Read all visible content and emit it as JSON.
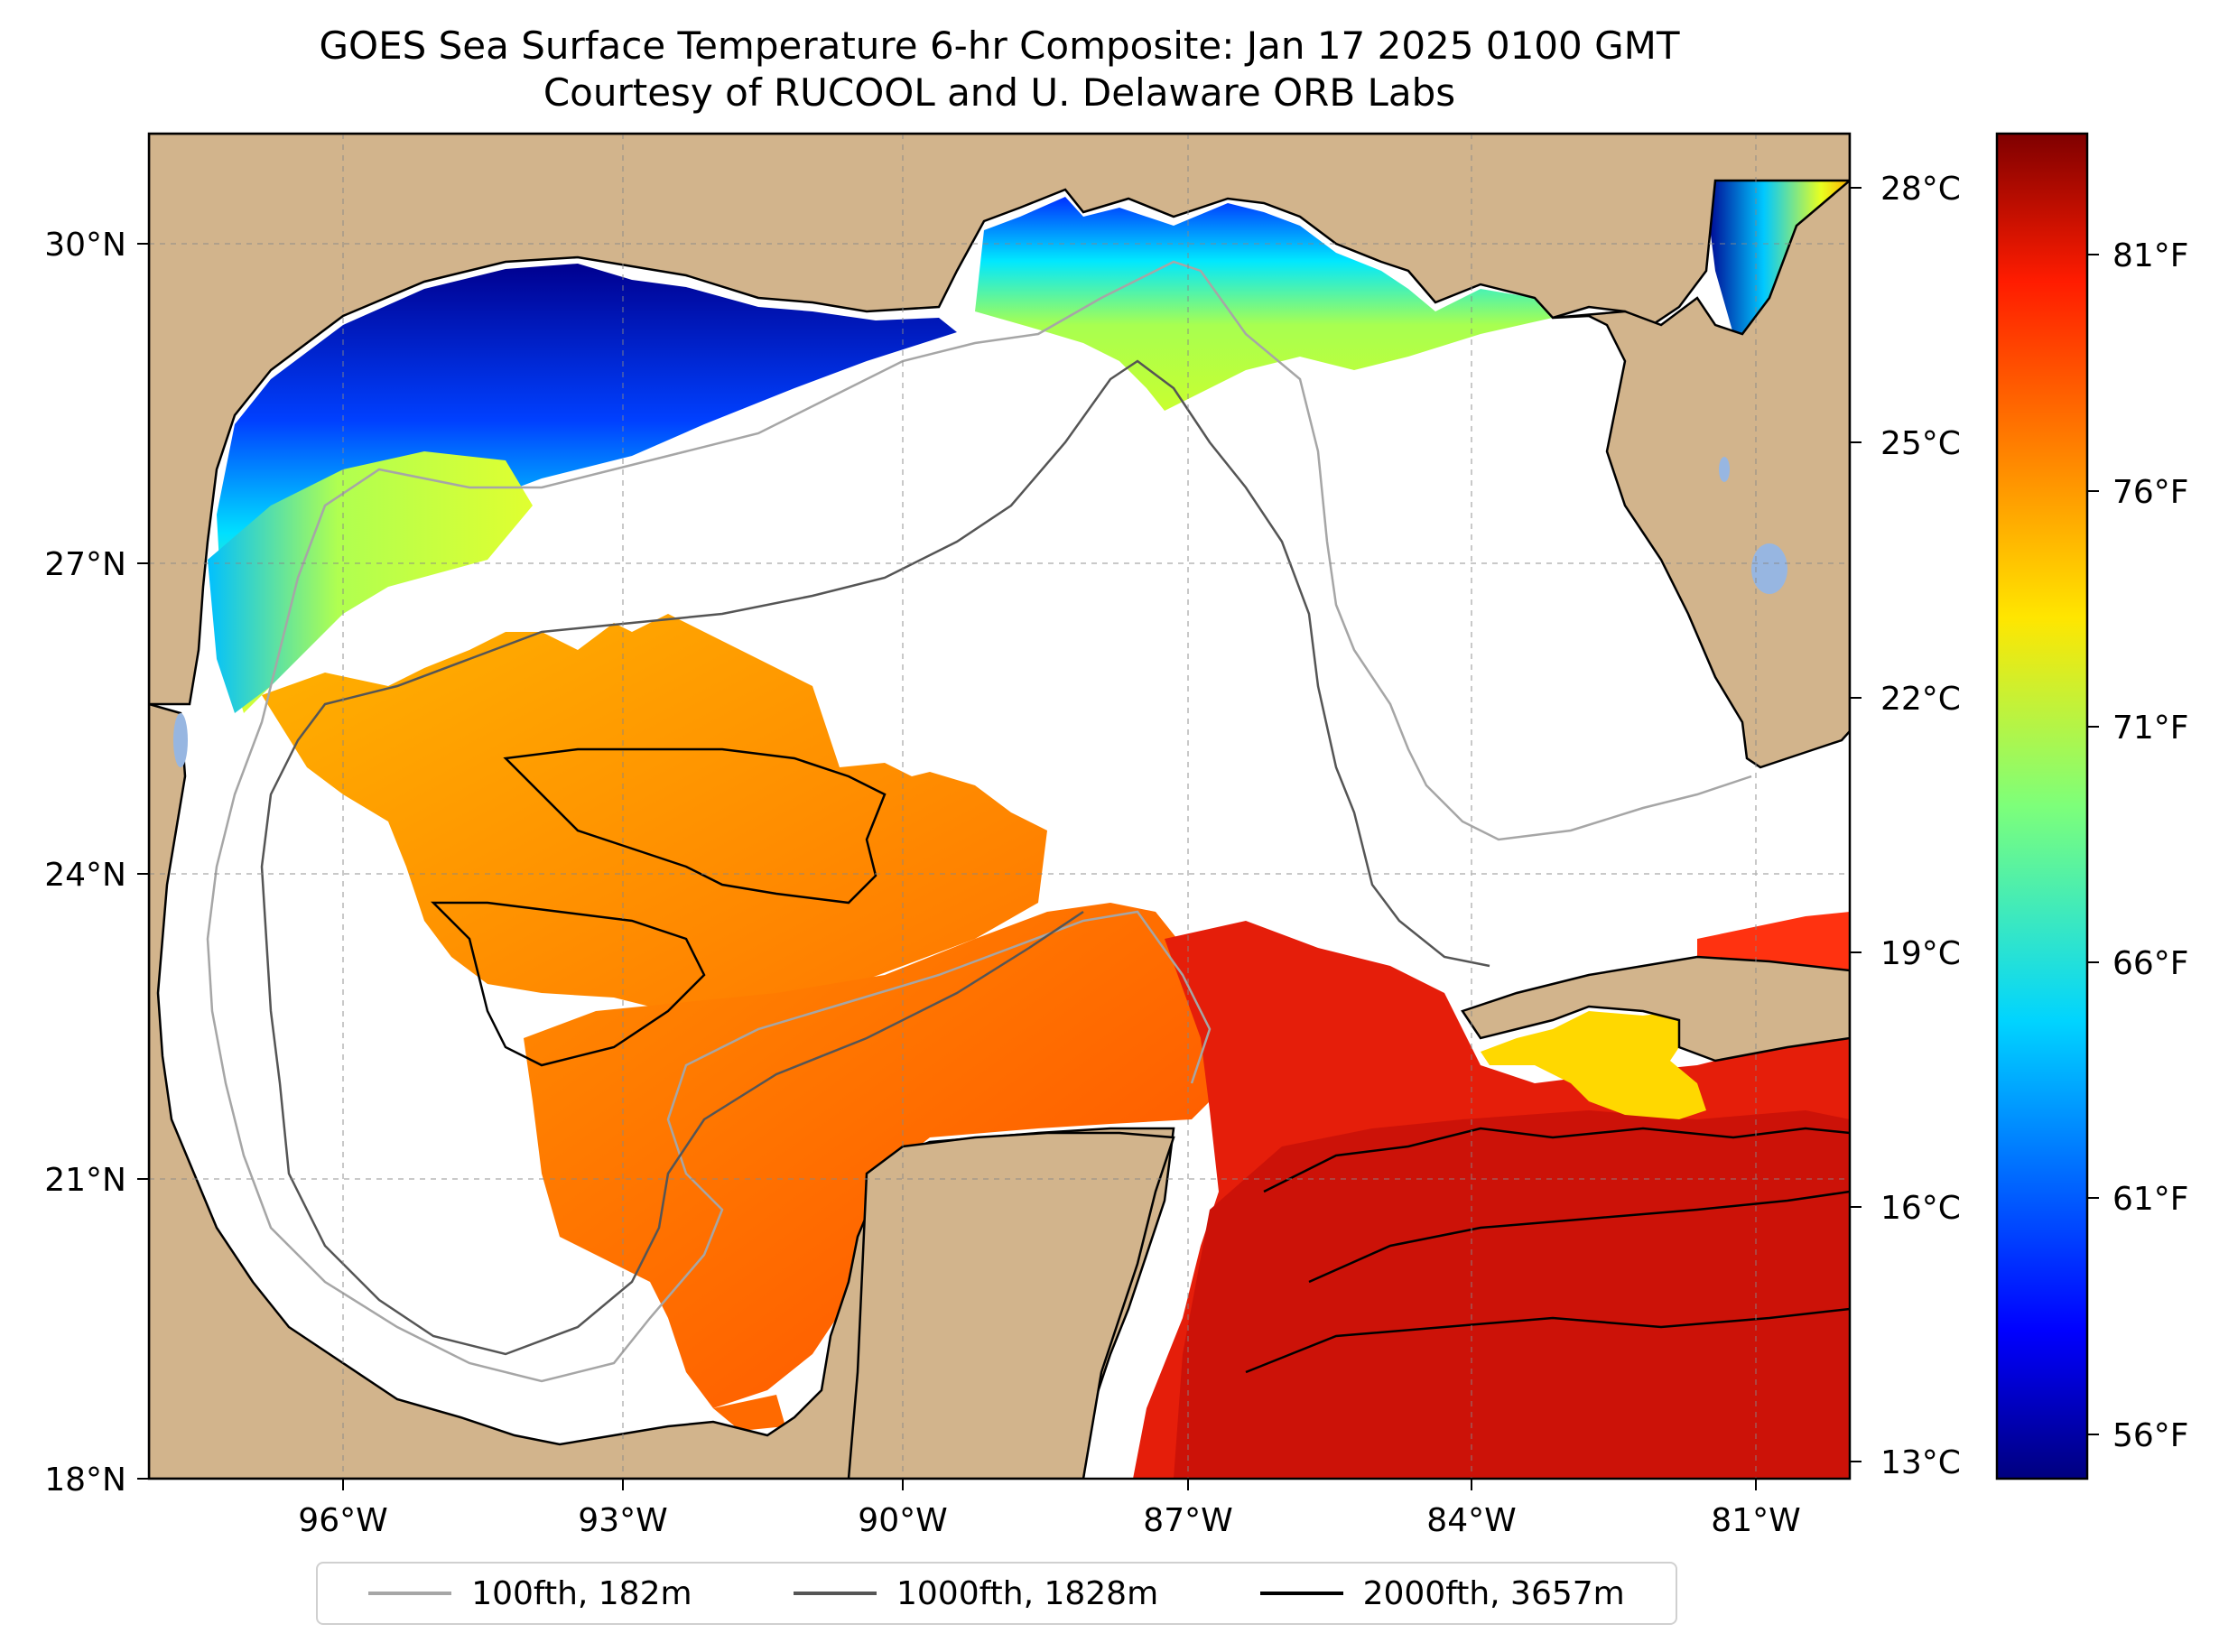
{
  "title": {
    "line1": "GOES Sea Surface Temperature 6-hr Composite: Jan 17 2025 0100 GMT",
    "line2": "Courtesy of RUCOOL and U. Delaware ORB Labs"
  },
  "map": {
    "region": "Gulf of Mexico",
    "lon_range": [
      -98,
      -80
    ],
    "lat_range": [
      18,
      31
    ],
    "land_color": "#d2b48c",
    "no_data_color": "#ffffff",
    "lake_color": "#97b6e1",
    "lat_ticks": [
      "30°N",
      "27°N",
      "24°N",
      "21°N",
      "18°N"
    ],
    "lon_ticks": [
      "96°W",
      "93°W",
      "90°W",
      "87°W",
      "84°W",
      "81°W"
    ]
  },
  "colorbar": {
    "colormap": "jet",
    "celsius_ticks": [
      "28°C",
      "25°C",
      "22°C",
      "19°C",
      "16°C",
      "13°C"
    ],
    "fahrenheit_ticks": [
      "81°F",
      "76°F",
      "71°F",
      "66°F",
      "61°F",
      "56°F"
    ],
    "range_f": [
      54.5,
      84
    ]
  },
  "legend": {
    "entries": [
      {
        "label": "100fth, 182m",
        "color": "#a6a6a6"
      },
      {
        "label": "1000fth, 1828m",
        "color": "#555555"
      },
      {
        "label": "2000fth, 3657m",
        "color": "#000000"
      }
    ]
  }
}
